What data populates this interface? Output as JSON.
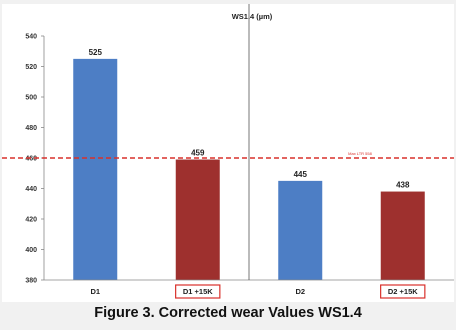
{
  "chart_data": {
    "type": "bar",
    "title": "WS1.4 (µm)",
    "categories": [
      "D1",
      "D1 +15K",
      "D2",
      "D2 +15K"
    ],
    "highlighted_categories": [
      "D1 +15K",
      "D2 +15K"
    ],
    "values": [
      525,
      459,
      445,
      438
    ],
    "bar_colors": [
      "#4d7ec5",
      "#9e302e",
      "#4d7ec5",
      "#9e302e"
    ],
    "ylim": [
      380,
      540
    ],
    "yticks": [
      380,
      400,
      420,
      440,
      460,
      480,
      500,
      520,
      540
    ],
    "reference_line": {
      "value": 460,
      "color": "#d9302b",
      "style": "dashed",
      "label": "Max LTR 558"
    },
    "group_separator_after_category": "D1 +15K",
    "grid": false,
    "legend": "none"
  },
  "caption": "Figure 3. Corrected wear Values WS1.4"
}
